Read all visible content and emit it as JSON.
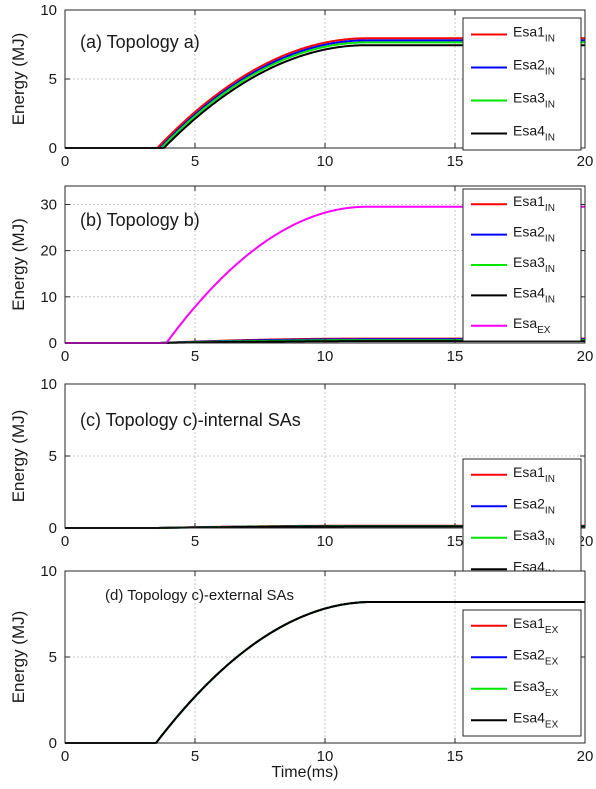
{
  "figure": {
    "xlabel": "Time(ms)",
    "axis_line_color": "#262626",
    "grid_color": "#b8b8b8"
  },
  "chart_data": [
    {
      "type": "line",
      "annotation": "(a) Topology a)",
      "ylabel": "Energy (MJ)",
      "xlim": [
        0,
        20
      ],
      "ylim": [
        0,
        10
      ],
      "xticks": [
        0,
        5,
        10,
        15,
        20
      ],
      "yticks": [
        0,
        5,
        10
      ],
      "grid": true,
      "legend_position": "right",
      "series": [
        {
          "base": "Esa1",
          "sub": "IN",
          "color": "#ff0000",
          "onset": 3.55,
          "plateau_start": 11.6,
          "plateau": 7.95
        },
        {
          "base": "Esa2",
          "sub": "IN",
          "color": "#0000ff",
          "onset": 3.65,
          "plateau_start": 11.6,
          "plateau": 7.8
        },
        {
          "base": "Esa3",
          "sub": "IN",
          "color": "#00e600",
          "onset": 3.7,
          "plateau_start": 11.6,
          "plateau": 7.65
        },
        {
          "base": "Esa4",
          "sub": "IN",
          "color": "#000000",
          "onset": 3.8,
          "plateau_start": 11.6,
          "plateau": 7.45
        }
      ]
    },
    {
      "type": "line",
      "annotation": "(b) Topology b)",
      "ylabel": "Energy (MJ)",
      "xlim": [
        0,
        20
      ],
      "ylim": [
        0,
        34
      ],
      "xticks": [
        0,
        5,
        10,
        15,
        20
      ],
      "yticks": [
        0,
        10,
        20,
        30
      ],
      "grid": true,
      "legend_position": "right",
      "series": [
        {
          "base": "Esa1",
          "sub": "IN",
          "color": "#ff0000",
          "onset": 3.6,
          "plateau_start": 11.6,
          "plateau": 0.95
        },
        {
          "base": "Esa2",
          "sub": "IN",
          "color": "#0000ff",
          "onset": 3.6,
          "plateau_start": 11.6,
          "plateau": 0.8
        },
        {
          "base": "Esa3",
          "sub": "IN",
          "color": "#00e600",
          "onset": 3.6,
          "plateau_start": 11.6,
          "plateau": 0.6
        },
        {
          "base": "Esa4",
          "sub": "IN",
          "color": "#000000",
          "onset": 3.6,
          "plateau_start": 11.6,
          "plateau": 0.4
        },
        {
          "base": "Esa",
          "sub": "EX",
          "color": "#ff00ff",
          "onset": 3.9,
          "plateau_start": 11.6,
          "plateau": 29.5
        }
      ]
    },
    {
      "type": "line",
      "annotation": "(c) Topology c)-internal SAs",
      "ylabel": "Energy (MJ)",
      "xlim": [
        0,
        20
      ],
      "ylim": [
        0,
        10
      ],
      "xticks": [
        0,
        5,
        10,
        15,
        20
      ],
      "yticks": [
        0,
        5,
        10
      ],
      "grid": true,
      "legend_position": "right",
      "series": [
        {
          "base": "Esa1",
          "sub": "IN",
          "color": "#ff0000",
          "onset": 3.5,
          "plateau_start": 11.6,
          "plateau": 0.16
        },
        {
          "base": "Esa2",
          "sub": "IN",
          "color": "#0000ff",
          "onset": 3.5,
          "plateau_start": 11.6,
          "plateau": 0.14
        },
        {
          "base": "Esa3",
          "sub": "IN",
          "color": "#00e600",
          "onset": 3.5,
          "plateau_start": 11.6,
          "plateau": 0.13
        },
        {
          "base": "Esa4",
          "sub": "IN",
          "color": "#000000",
          "onset": 3.5,
          "plateau_start": 11.6,
          "plateau": 0.11
        }
      ]
    },
    {
      "type": "line",
      "annotation": "(d) Topology c)-external SAs",
      "ylabel": "Energy (MJ)",
      "xlim": [
        0,
        20
      ],
      "ylim": [
        0,
        10
      ],
      "xticks": [
        0,
        5,
        10,
        15,
        20
      ],
      "yticks": [
        0,
        5,
        10
      ],
      "grid": true,
      "legend_position": "right",
      "series": [
        {
          "base": "Esa1",
          "sub": "EX",
          "color": "#ff0000",
          "onset": 3.5,
          "plateau_start": 11.8,
          "plateau": 8.2
        },
        {
          "base": "Esa2",
          "sub": "EX",
          "color": "#0000ff",
          "onset": 3.5,
          "plateau_start": 11.8,
          "plateau": 8.2
        },
        {
          "base": "Esa3",
          "sub": "EX",
          "color": "#00e600",
          "onset": 3.5,
          "plateau_start": 11.8,
          "plateau": 8.2
        },
        {
          "base": "Esa4",
          "sub": "EX",
          "color": "#000000",
          "onset": 3.5,
          "plateau_start": 11.8,
          "plateau": 8.2
        }
      ]
    }
  ]
}
